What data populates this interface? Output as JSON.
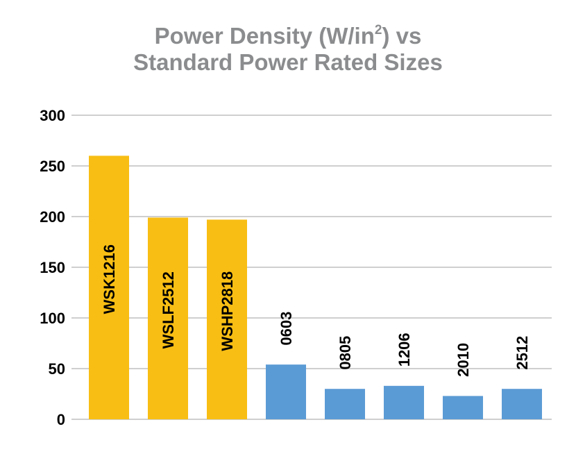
{
  "chart_data": {
    "type": "bar",
    "title_prefix": "Power Density (W/in",
    "title_sup": "2",
    "title_suffix": ") vs",
    "title_line2": "Standard Power Rated Sizes",
    "categories": [
      "WSK1216",
      "WSLF2512",
      "WSHP2818",
      "0603",
      "0805",
      "1206",
      "2010",
      "2512"
    ],
    "values": [
      260,
      199,
      197,
      54,
      30,
      33,
      23,
      30
    ],
    "bar_colors": [
      "#f8be14",
      "#f8be14",
      "#f8be14",
      "#5b9bd5",
      "#5b9bd5",
      "#5b9bd5",
      "#5b9bd5",
      "#5b9bd5"
    ],
    "label_inside": [
      true,
      true,
      true,
      false,
      false,
      false,
      false,
      false
    ],
    "yticks": [
      "0",
      "50",
      "100",
      "150",
      "200",
      "250",
      "300"
    ],
    "ylim": [
      0,
      300
    ],
    "grid": true,
    "legend": false
  }
}
